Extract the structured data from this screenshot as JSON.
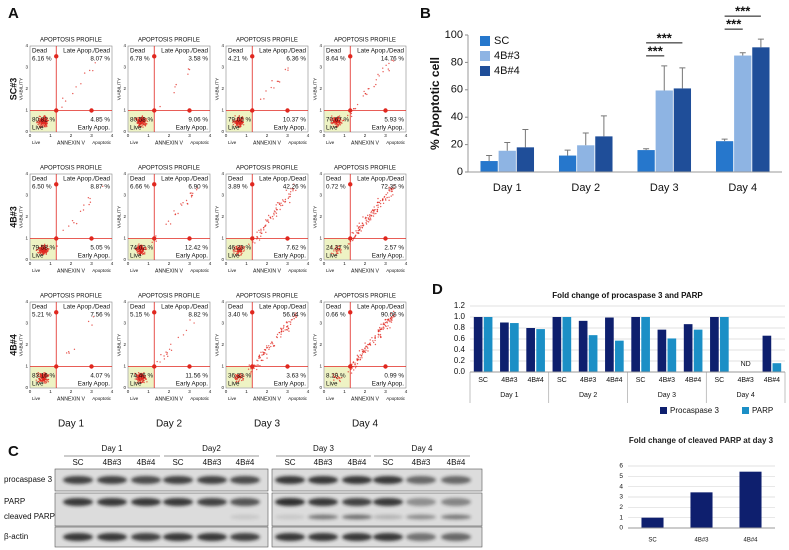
{
  "panel_labels": [
    "A",
    "B",
    "C",
    "D"
  ],
  "flow": {
    "title": "APOPTOSIS PROFILE",
    "y_label": "VIABILITY",
    "x_label": "ANNEXIN V",
    "x_sub": [
      "Live",
      "Apoptotic"
    ],
    "ticks": [
      0,
      1,
      2,
      3,
      4
    ],
    "quadrant_names": [
      "Dead",
      "Late Apop./Dead",
      "Live",
      "Early Apop."
    ],
    "rows": [
      "SC#3",
      "4B#3",
      "4B#4"
    ],
    "columns": [
      "Day 1",
      "Day 2",
      "Day 3",
      "Day 4"
    ],
    "plots": [
      [
        {
          "dead": "6.16 %",
          "late": "8.07 %",
          "live": "80.82 %",
          "early": "4.85 %"
        },
        {
          "dead": "6.78 %",
          "late": "3.58 %",
          "live": "80.58 %",
          "early": "9.06 %"
        },
        {
          "dead": "4.21 %",
          "late": "6.36 %",
          "live": "79.05 %",
          "early": "10.37 %"
        },
        {
          "dead": "8.64 %",
          "late": "14.76 %",
          "live": "70.67 %",
          "early": "5.93 %"
        }
      ],
      [
        {
          "dead": "6.50 %",
          "late": "8.87 %",
          "live": "79.58 %",
          "early": "5.05 %"
        },
        {
          "dead": "6.66 %",
          "late": "6.90 %",
          "live": "74.02 %",
          "early": "12.42 %"
        },
        {
          "dead": "3.89 %",
          "late": "42.26 %",
          "live": "46.23 %",
          "early": "7.62 %"
        },
        {
          "dead": "0.72 %",
          "late": "72.35 %",
          "live": "24.37 %",
          "early": "2.57 %"
        }
      ],
      [
        {
          "dead": "5.21 %",
          "late": "7.56 %",
          "live": "83.16 %",
          "early": "4.07 %"
        },
        {
          "dead": "5.15 %",
          "late": "8.82 %",
          "live": "74.46 %",
          "early": "11.56 %"
        },
        {
          "dead": "3.40 %",
          "late": "56.64 %",
          "live": "36.33 %",
          "early": "3.63 %"
        },
        {
          "dead": "0.66 %",
          "late": "90.06 %",
          "live": "8.29 %",
          "early": "0.99 %"
        }
      ]
    ]
  },
  "blot": {
    "panels": [
      {
        "days": [
          "Day 1",
          "Day2"
        ]
      },
      {
        "days": [
          "Day 3",
          "Day 4"
        ]
      }
    ],
    "lanes": [
      "SC",
      "4B#3",
      "4B#4"
    ],
    "rows": [
      "procaspase 3",
      "PARP",
      "cleaved PARP",
      "β-actin"
    ]
  },
  "chart_data": [
    {
      "type": "bar",
      "ylabel": "% Apoptotic cell",
      "categories": [
        "Day 1",
        "Day 2",
        "Day 3",
        "Day 4"
      ],
      "series": [
        {
          "name": "SC",
          "color": "#2677cc",
          "values": [
            8,
            12,
            16,
            22.5
          ],
          "errors": [
            4,
            4,
            1,
            1.5
          ]
        },
        {
          "name": "4B#3",
          "color": "#8eb4e3",
          "values": [
            15.5,
            19.5,
            59.5,
            85
          ],
          "errors": [
            6,
            9,
            18,
            2
          ]
        },
        {
          "name": "4B#4",
          "color": "#1f4e99",
          "values": [
            18,
            26,
            61,
            91
          ],
          "errors": [
            13,
            15,
            15,
            6
          ]
        }
      ],
      "ylim": [
        0,
        100
      ],
      "yticks": [
        0,
        20,
        40,
        60,
        80,
        100
      ],
      "legend": "upper-left",
      "annotations": [
        "***",
        "***",
        "***",
        "***"
      ]
    },
    {
      "type": "bar",
      "title": "Fold change of procaspase 3 and PARP",
      "categories": [
        "SC",
        "4B#3",
        "4B#4",
        "SC",
        "4B#3",
        "4B#4",
        "SC",
        "4B#3",
        "4B#4",
        "SC",
        "4B#3",
        "4B#4"
      ],
      "groups": [
        "Day 1",
        "Day 2",
        "Day 3",
        "Day 4"
      ],
      "series": [
        {
          "name": "Procaspase 3",
          "color": "#0e1f6e",
          "values": [
            1,
            0.9,
            0.8,
            1,
            0.93,
            0.99,
            1,
            0.77,
            0.87,
            1,
            null,
            0.66
          ]
        },
        {
          "name": "PARP",
          "color": "#1b8fc6",
          "values": [
            1,
            0.89,
            0.78,
            1,
            0.67,
            0.57,
            1,
            0.61,
            0.77,
            1,
            null,
            0.16
          ]
        }
      ],
      "ylim": [
        0,
        1.2
      ],
      "yticks": [
        {
          "value": 0,
          "label": "0.0"
        },
        0.2,
        0.4,
        0.6,
        0.8,
        {
          "value": 1,
          "label": "1.0"
        },
        1.2
      ],
      "grid": true,
      "legend": "bottom-right",
      "annotations": [
        "ND"
      ]
    },
    {
      "type": "bar",
      "title": "Fold change of cleaved PARP at day 3",
      "categories": [
        "SC",
        "4B#3",
        "4B#4"
      ],
      "values": [
        1,
        3.45,
        5.45
      ],
      "color": "#0e1f6e",
      "ylim": [
        0,
        6
      ],
      "yticks": [
        0,
        1,
        2,
        3,
        4,
        5,
        6
      ],
      "grid": true
    }
  ]
}
